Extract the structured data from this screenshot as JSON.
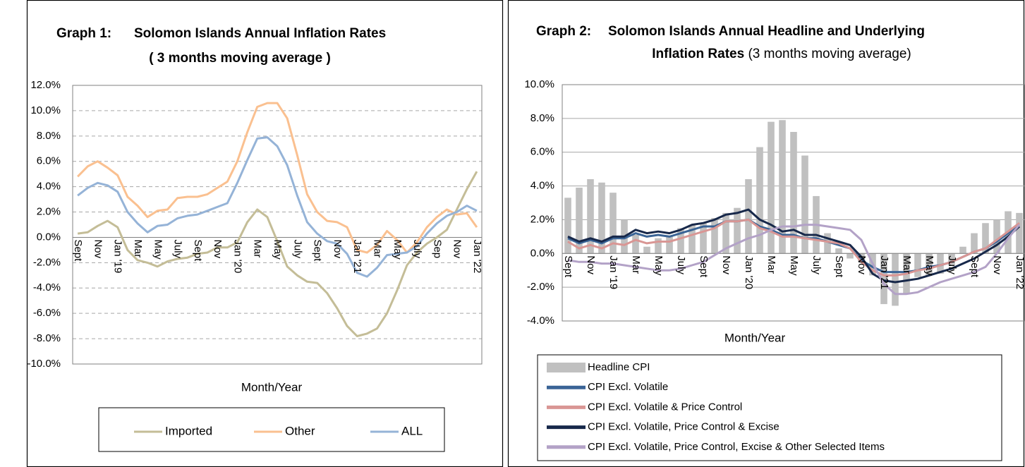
{
  "chart_data": [
    {
      "type": "line",
      "label": "Graph 1:",
      "title": "Solomon Islands Annual Inflation Rates",
      "subtitle": "( 3 months moving average )",
      "xlabel": "Month/Year",
      "categories": [
        "Sept",
        null,
        "Nov",
        null,
        "Jan '19",
        null,
        "Mar",
        null,
        "May",
        null,
        "July",
        null,
        "Sept",
        null,
        "Nov",
        null,
        "Jan '20",
        null,
        "Mar",
        null,
        "May",
        null,
        "July",
        null,
        "Sept",
        null,
        "Nov",
        null,
        "Jan '21",
        null,
        "Mar",
        null,
        "May",
        null,
        "July",
        null,
        "Sep",
        null,
        "Nov",
        null,
        "Jan '22"
      ],
      "series": [
        {
          "name": "Imported",
          "color": "#c4bd97",
          "values": [
            0.3,
            0.4,
            0.9,
            1.3,
            0.8,
            -1.0,
            -1.8,
            -2.0,
            -2.3,
            -1.9,
            -1.7,
            -1.6,
            -1.3,
            -1.2,
            -0.8,
            -0.8,
            -0.4,
            1.2,
            2.2,
            1.6,
            -0.3,
            -2.3,
            -3.0,
            -3.5,
            -3.6,
            -4.4,
            -5.6,
            -7.0,
            -7.8,
            -7.6,
            -7.2,
            -6.0,
            -4.2,
            -2.2,
            -1.2,
            -0.5,
            0.0,
            0.6,
            2.2,
            3.8,
            5.2
          ]
        },
        {
          "name": "Other",
          "color": "#fac090",
          "values": [
            4.8,
            5.6,
            6.0,
            5.5,
            4.9,
            3.2,
            2.5,
            1.6,
            2.1,
            2.2,
            3.1,
            3.2,
            3.2,
            3.4,
            3.9,
            4.4,
            6.0,
            8.3,
            10.3,
            10.6,
            10.6,
            9.4,
            6.5,
            3.4,
            2.0,
            1.3,
            1.2,
            0.8,
            -1.0,
            -1.2,
            -0.6,
            0.5,
            -0.2,
            -1.2,
            -0.4,
            0.8,
            1.6,
            2.2,
            1.8,
            1.9,
            0.8
          ]
        },
        {
          "name": "ALL",
          "color": "#95b3d7",
          "values": [
            3.3,
            3.9,
            4.3,
            4.1,
            3.6,
            2.0,
            1.1,
            0.4,
            0.9,
            1.0,
            1.5,
            1.7,
            1.8,
            2.1,
            2.4,
            2.7,
            4.3,
            6.1,
            7.8,
            7.9,
            7.2,
            5.7,
            3.3,
            1.2,
            0.3,
            -0.3,
            -0.5,
            -1.3,
            -2.8,
            -3.1,
            -2.4,
            -1.4,
            -1.3,
            -1.2,
            -0.7,
            0.3,
            1.1,
            1.7,
            2.0,
            2.5,
            2.1
          ]
        }
      ],
      "ylim": [
        -10,
        12
      ],
      "yticks": [
        {
          "value": -10,
          "label": "-10.0%"
        },
        {
          "value": -8,
          "label": "-8.0%"
        },
        {
          "value": -6,
          "label": "-6.0%"
        },
        {
          "value": -4,
          "label": "-4.0%"
        },
        {
          "value": -2,
          "label": "-2.0%"
        },
        {
          "value": 0,
          "label": "0.0%"
        },
        {
          "value": 2,
          "label": "2.0%"
        },
        {
          "value": 4,
          "label": "4.0%"
        },
        {
          "value": 6,
          "label": "6.0%"
        },
        {
          "value": 8,
          "label": "8.0%"
        },
        {
          "value": 10,
          "label": "10.0%"
        },
        {
          "value": 12,
          "label": "12.0%"
        }
      ],
      "grid": true,
      "legend": "bottom"
    },
    {
      "type": "line",
      "label": "Graph 2:",
      "title": [
        "Solomon Islands Annual Headline and Underlying",
        "Inflation Rates"
      ],
      "subtitle": "(3 months moving average)",
      "xlabel": "Month/Year",
      "categories": [
        "Sept",
        null,
        "Nov",
        null,
        "Jan '19",
        null,
        "Mar",
        null,
        "May",
        null,
        "July",
        null,
        "Sept",
        null,
        "Nov",
        null,
        "Jan '20",
        null,
        "Mar",
        null,
        "May",
        null,
        "July",
        null,
        "Sept",
        null,
        "Nov",
        null,
        "Jan '21",
        null,
        "Mar",
        null,
        "May",
        null,
        "July",
        null,
        "Sept",
        null,
        "Nov",
        null,
        "Jan '22"
      ],
      "series": [
        {
          "name": "Headline CPI",
          "type": "bar",
          "color": "#c0c0c0",
          "values": [
            3.3,
            3.9,
            4.4,
            4.2,
            3.6,
            2.0,
            1.1,
            0.4,
            0.9,
            1.0,
            1.5,
            1.7,
            1.8,
            2.1,
            2.4,
            2.7,
            4.4,
            6.3,
            7.8,
            7.9,
            7.2,
            5.8,
            3.4,
            1.2,
            0.3,
            -0.3,
            -0.5,
            -1.3,
            -3.0,
            -3.1,
            -2.4,
            -1.4,
            -1.3,
            -1.2,
            -0.7,
            0.4,
            1.2,
            1.8,
            2.0,
            2.5,
            2.4
          ]
        },
        {
          "name": "CPI Excl. Volatile",
          "color": "#3a6496",
          "values": [
            0.9,
            0.6,
            0.8,
            0.6,
            0.9,
            0.9,
            1.2,
            1.0,
            1.1,
            1.0,
            1.2,
            1.4,
            1.6,
            1.6,
            1.9,
            1.9,
            2.0,
            1.6,
            1.4,
            1.1,
            1.1,
            0.9,
            0.9,
            0.7,
            0.5,
            0.3,
            -0.4,
            -0.8,
            -1.1,
            -1.1,
            -1.1,
            -1.0,
            -0.8,
            -0.7,
            -0.5,
            -0.2,
            0.1,
            0.3,
            0.7,
            1.2,
            1.7
          ]
        },
        {
          "name": "CPI Excl. Volatile & Price Control",
          "color": "#d99694",
          "values": [
            0.7,
            0.3,
            0.5,
            0.3,
            0.6,
            0.5,
            0.8,
            0.6,
            0.7,
            0.7,
            0.9,
            1.1,
            1.3,
            1.5,
            1.9,
            1.9,
            2.0,
            1.5,
            1.3,
            1.0,
            1.0,
            0.9,
            0.8,
            0.7,
            0.6,
            0.3,
            -0.5,
            -1.0,
            -1.3,
            -1.3,
            -1.2,
            -1.0,
            -0.9,
            -0.7,
            -0.5,
            -0.2,
            0.1,
            0.3,
            0.8,
            1.3,
            1.8
          ]
        },
        {
          "name": "CPI Excl. Volatile, Price Control & Excise",
          "color": "#17284a",
          "values": [
            1.0,
            0.7,
            0.9,
            0.7,
            1.0,
            1.0,
            1.4,
            1.2,
            1.3,
            1.2,
            1.4,
            1.7,
            1.8,
            2.0,
            2.3,
            2.4,
            2.6,
            2.0,
            1.7,
            1.3,
            1.4,
            1.1,
            1.1,
            0.9,
            0.7,
            0.5,
            -0.2,
            -1.2,
            -1.6,
            -1.7,
            -1.6,
            -1.5,
            -1.3,
            -1.1,
            -0.9,
            -0.6,
            -0.3,
            0.1,
            0.5,
            1.0,
            1.6
          ]
        },
        {
          "name": "CPI Excl. Volatile, Price Control, Excise & Other Selected Items",
          "color": "#b3a2c7",
          "values": [
            -0.4,
            -0.5,
            -0.5,
            -0.6,
            -0.6,
            -0.7,
            -0.8,
            -0.9,
            -1.0,
            -1.0,
            -0.9,
            -0.7,
            -0.5,
            -0.1,
            0.3,
            0.6,
            0.9,
            1.1,
            1.4,
            1.6,
            1.6,
            1.7,
            1.7,
            1.6,
            1.5,
            1.4,
            0.8,
            -0.6,
            -1.8,
            -2.4,
            -2.4,
            -2.3,
            -2.0,
            -1.7,
            -1.5,
            -1.3,
            -1.1,
            -0.8,
            0.0,
            0.9,
            1.7
          ]
        }
      ],
      "ylim": [
        -4,
        10
      ],
      "yticks": [
        {
          "value": -4,
          "label": "-4.0%"
        },
        {
          "value": -2,
          "label": "-2.0%"
        },
        {
          "value": 0,
          "label": "0.0%"
        },
        {
          "value": 2,
          "label": "2.0%"
        },
        {
          "value": 4,
          "label": "4.0%"
        },
        {
          "value": 6,
          "label": "6.0%"
        },
        {
          "value": 8,
          "label": "8.0%"
        },
        {
          "value": 10,
          "label": "10.0%"
        }
      ],
      "grid": true,
      "legend": "bottom"
    }
  ]
}
